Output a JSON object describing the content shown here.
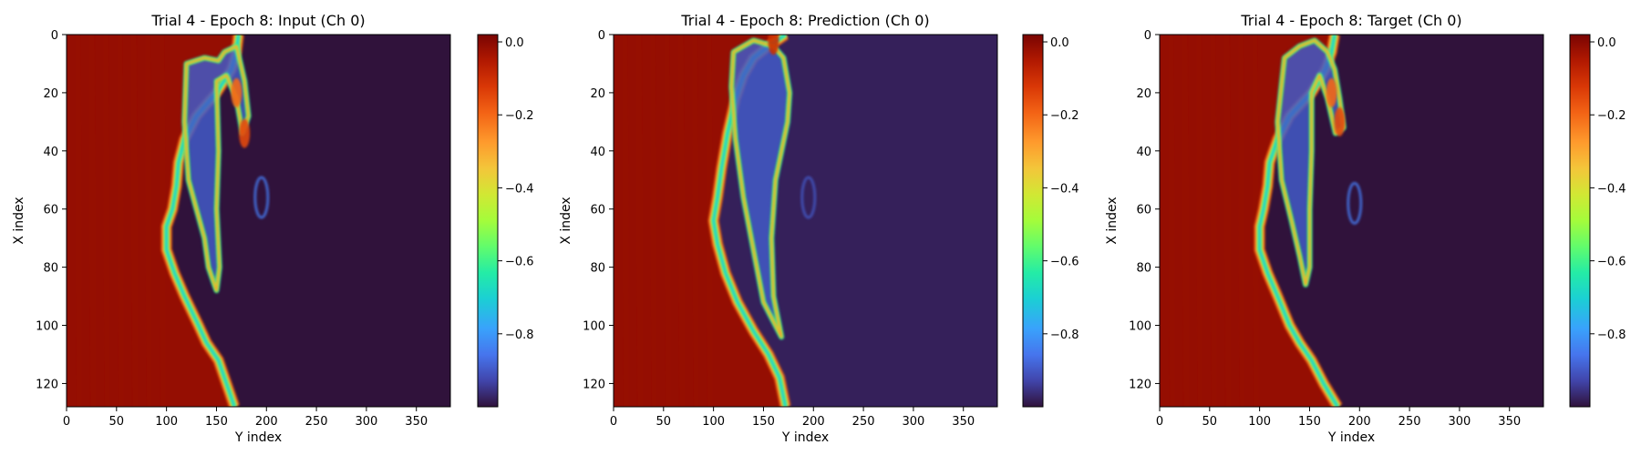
{
  "figure": {
    "colormap": "turbo"
  },
  "chart_data": [
    {
      "type": "heatmap",
      "title": "Trial 4 - Epoch 8: Input (Ch 0)",
      "xlabel": "Y index",
      "ylabel": "X index",
      "xlim": [
        0,
        384
      ],
      "ylim": [
        128,
        0
      ],
      "xticks": [
        "0",
        "50",
        "100",
        "150",
        "200",
        "250",
        "300",
        "350"
      ],
      "yticks": [
        "0",
        "20",
        "40",
        "60",
        "80",
        "100",
        "120"
      ],
      "colorbar": {
        "range": [
          -1.0,
          0.02
        ],
        "ticks": [
          "0.0",
          "−0.2",
          "−0.4",
          "−0.6",
          "−0.8"
        ]
      },
      "front_boundary": [
        [
          0,
          172
        ],
        [
          6,
          170
        ],
        [
          12,
          165
        ],
        [
          20,
          150
        ],
        [
          28,
          130
        ],
        [
          36,
          118
        ],
        [
          44,
          112
        ],
        [
          52,
          110
        ],
        [
          60,
          106
        ],
        [
          66,
          100
        ],
        [
          74,
          100
        ],
        [
          82,
          108
        ],
        [
          90,
          118
        ],
        [
          100,
          132
        ],
        [
          106,
          140
        ],
        [
          112,
          152
        ],
        [
          120,
          160
        ],
        [
          128,
          168
        ]
      ],
      "plume_contour": [
        [
          10,
          120
        ],
        [
          8,
          138
        ],
        [
          9,
          152
        ],
        [
          6,
          158
        ],
        [
          4,
          170
        ],
        [
          16,
          178
        ],
        [
          28,
          182
        ],
        [
          34,
          176
        ],
        [
          22,
          170
        ],
        [
          14,
          160
        ],
        [
          16,
          150
        ],
        [
          40,
          152
        ],
        [
          60,
          150
        ],
        [
          80,
          153
        ],
        [
          88,
          150
        ],
        [
          80,
          142
        ],
        [
          70,
          138
        ],
        [
          60,
          130
        ],
        [
          50,
          122
        ],
        [
          30,
          118
        ]
      ],
      "hot_spots": [
        {
          "y": 20,
          "x": 170,
          "value": -0.2
        },
        {
          "y": 34,
          "x": 178,
          "value": -0.15
        }
      ],
      "faint_features": [
        {
          "y": 56,
          "x": 195,
          "value": -0.85
        }
      ],
      "background_value": -1.0,
      "left_region_value": 0.0
    },
    {
      "type": "heatmap",
      "title": "Trial 4 - Epoch 8: Prediction (Ch 0)",
      "xlabel": "Y index",
      "ylabel": "X index",
      "xlim": [
        0,
        384
      ],
      "ylim": [
        128,
        0
      ],
      "xticks": [
        "0",
        "50",
        "100",
        "150",
        "200",
        "250",
        "300",
        "350"
      ],
      "yticks": [
        "0",
        "20",
        "40",
        "60",
        "80",
        "100",
        "120"
      ],
      "colorbar": {
        "range": [
          -1.0,
          0.02
        ],
        "ticks": [
          "0.0",
          "−0.2",
          "−0.4",
          "−0.6",
          "−0.8"
        ]
      },
      "front_boundary": [
        [
          0,
          172
        ],
        [
          4,
          155
        ],
        [
          8,
          140
        ],
        [
          14,
          130
        ],
        [
          22,
          122
        ],
        [
          34,
          114
        ],
        [
          46,
          108
        ],
        [
          56,
          104
        ],
        [
          64,
          100
        ],
        [
          72,
          104
        ],
        [
          82,
          112
        ],
        [
          92,
          124
        ],
        [
          102,
          140
        ],
        [
          110,
          155
        ],
        [
          118,
          166
        ],
        [
          128,
          172
        ]
      ],
      "plume_contour": [
        [
          6,
          120
        ],
        [
          2,
          140
        ],
        [
          4,
          160
        ],
        [
          8,
          170
        ],
        [
          20,
          176
        ],
        [
          30,
          174
        ],
        [
          50,
          162
        ],
        [
          70,
          158
        ],
        [
          90,
          160
        ],
        [
          104,
          168
        ],
        [
          92,
          150
        ],
        [
          74,
          140
        ],
        [
          56,
          130
        ],
        [
          36,
          122
        ],
        [
          18,
          118
        ]
      ],
      "hot_spots": [
        {
          "y": 2,
          "x": 160,
          "value": -0.1
        }
      ],
      "faint_features": [
        {
          "y": 56,
          "x": 195,
          "value": -0.9
        }
      ],
      "background_value": -0.98,
      "left_region_value": 0.0
    },
    {
      "type": "heatmap",
      "title": "Trial 4 - Epoch 8: Target (Ch 0)",
      "xlabel": "Y index",
      "ylabel": "X index",
      "xlim": [
        0,
        384
      ],
      "ylim": [
        128,
        0
      ],
      "xticks": [
        "0",
        "50",
        "100",
        "150",
        "200",
        "250",
        "300",
        "350"
      ],
      "yticks": [
        "0",
        "20",
        "40",
        "60",
        "80",
        "100",
        "120"
      ],
      "colorbar": {
        "range": [
          -1.0,
          0.02
        ],
        "ticks": [
          "0.0",
          "−0.2",
          "−0.4",
          "−0.6",
          "−0.8"
        ]
      },
      "front_boundary": [
        [
          0,
          175
        ],
        [
          6,
          172
        ],
        [
          12,
          166
        ],
        [
          20,
          152
        ],
        [
          28,
          130
        ],
        [
          36,
          118
        ],
        [
          44,
          110
        ],
        [
          52,
          108
        ],
        [
          60,
          104
        ],
        [
          66,
          100
        ],
        [
          74,
          100
        ],
        [
          82,
          108
        ],
        [
          90,
          118
        ],
        [
          100,
          130
        ],
        [
          106,
          140
        ],
        [
          112,
          152
        ],
        [
          120,
          164
        ],
        [
          128,
          178
        ]
      ],
      "plume_contour": [
        [
          8,
          125
        ],
        [
          4,
          140
        ],
        [
          2,
          155
        ],
        [
          6,
          168
        ],
        [
          12,
          175
        ],
        [
          22,
          180
        ],
        [
          32,
          184
        ],
        [
          34,
          176
        ],
        [
          22,
          168
        ],
        [
          14,
          160
        ],
        [
          20,
          152
        ],
        [
          40,
          152
        ],
        [
          60,
          150
        ],
        [
          80,
          150
        ],
        [
          86,
          146
        ],
        [
          76,
          140
        ],
        [
          64,
          132
        ],
        [
          50,
          122
        ],
        [
          30,
          118
        ]
      ],
      "hot_spots": [
        {
          "y": 20,
          "x": 172,
          "value": -0.2
        },
        {
          "y": 30,
          "x": 180,
          "value": -0.15
        }
      ],
      "faint_features": [
        {
          "y": 58,
          "x": 195,
          "value": -0.85
        }
      ],
      "background_value": -1.0,
      "left_region_value": 0.0
    }
  ]
}
